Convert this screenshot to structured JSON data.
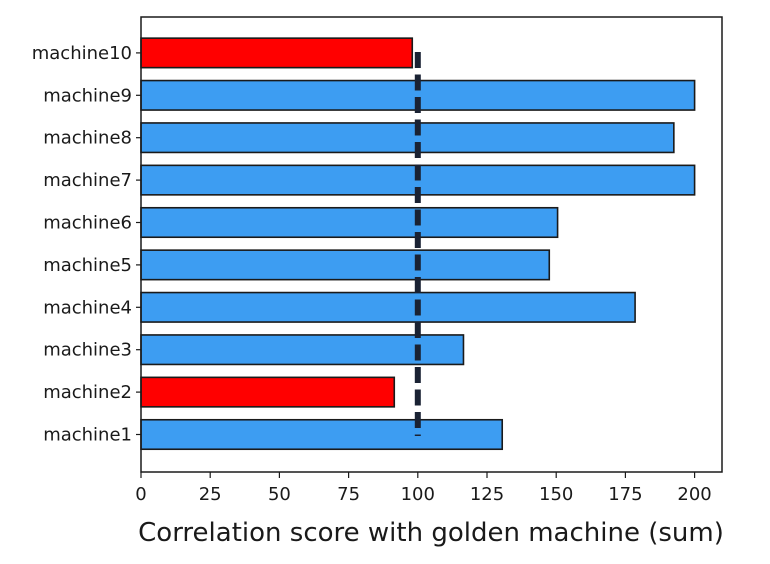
{
  "chart_data": {
    "type": "bar",
    "orientation": "horizontal",
    "title": "",
    "xlabel": "Correlation score with golden machine (sum)",
    "ylabel": "",
    "xlim": [
      0,
      210
    ],
    "xticks": [
      "0",
      "25",
      "50",
      "75",
      "100",
      "125",
      "150",
      "175",
      "200"
    ],
    "categories": [
      "machine1",
      "machine2",
      "machine3",
      "machine4",
      "machine5",
      "machine6",
      "machine7",
      "machine8",
      "machine9",
      "machine10"
    ],
    "values": [
      130.5,
      91.5,
      116.5,
      178.5,
      147.5,
      150.5,
      200.0,
      192.5,
      200.0,
      98.0
    ],
    "bar_colors": [
      "#3d9df2",
      "#ff0000",
      "#3d9df2",
      "#3d9df2",
      "#3d9df2",
      "#3d9df2",
      "#3d9df2",
      "#3d9df2",
      "#3d9df2",
      "#ff0000"
    ],
    "reference_line": {
      "x": 100,
      "style": "dashed",
      "color": "#1a2233"
    },
    "grid": false,
    "legend": "none"
  }
}
